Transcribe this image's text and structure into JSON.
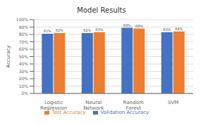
{
  "chart_data": {
    "type": "bar",
    "title": "Model Results",
    "categories": [
      "Logistic Regression",
      "Neural Network",
      "Random Forest",
      "SVM"
    ],
    "series": [
      {
        "name": "Validation Accuracy",
        "color": "#4472C4",
        "values": [
          81,
          82,
          89,
          83
        ],
        "value_labels": [
          "81%",
          "82%",
          "89%",
          "83%"
        ]
      },
      {
        "name": "Test Accuracy",
        "color": "#ED7D31",
        "values": [
          82,
          83,
          88,
          84
        ],
        "value_labels": [
          "82%",
          "83%",
          "88%",
          "84%"
        ]
      }
    ],
    "ylabel": "Accuracy",
    "ylim": [
      0,
      100
    ],
    "yticks": [
      {
        "value": 0,
        "label": "0%"
      },
      {
        "value": 10,
        "label": "10%"
      },
      {
        "value": 20,
        "label": "20%"
      },
      {
        "value": 30,
        "label": "30%"
      },
      {
        "value": 40,
        "label": "40%"
      },
      {
        "value": 50,
        "label": "50%"
      },
      {
        "value": 60,
        "label": "60%"
      },
      {
        "value": 70,
        "label": "70%"
      },
      {
        "value": 80,
        "label": "80%"
      },
      {
        "value": 90,
        "label": "90%"
      },
      {
        "value": 100,
        "label": "100%"
      }
    ],
    "grid": true,
    "legend": "bottom",
    "data_labels": true
  }
}
